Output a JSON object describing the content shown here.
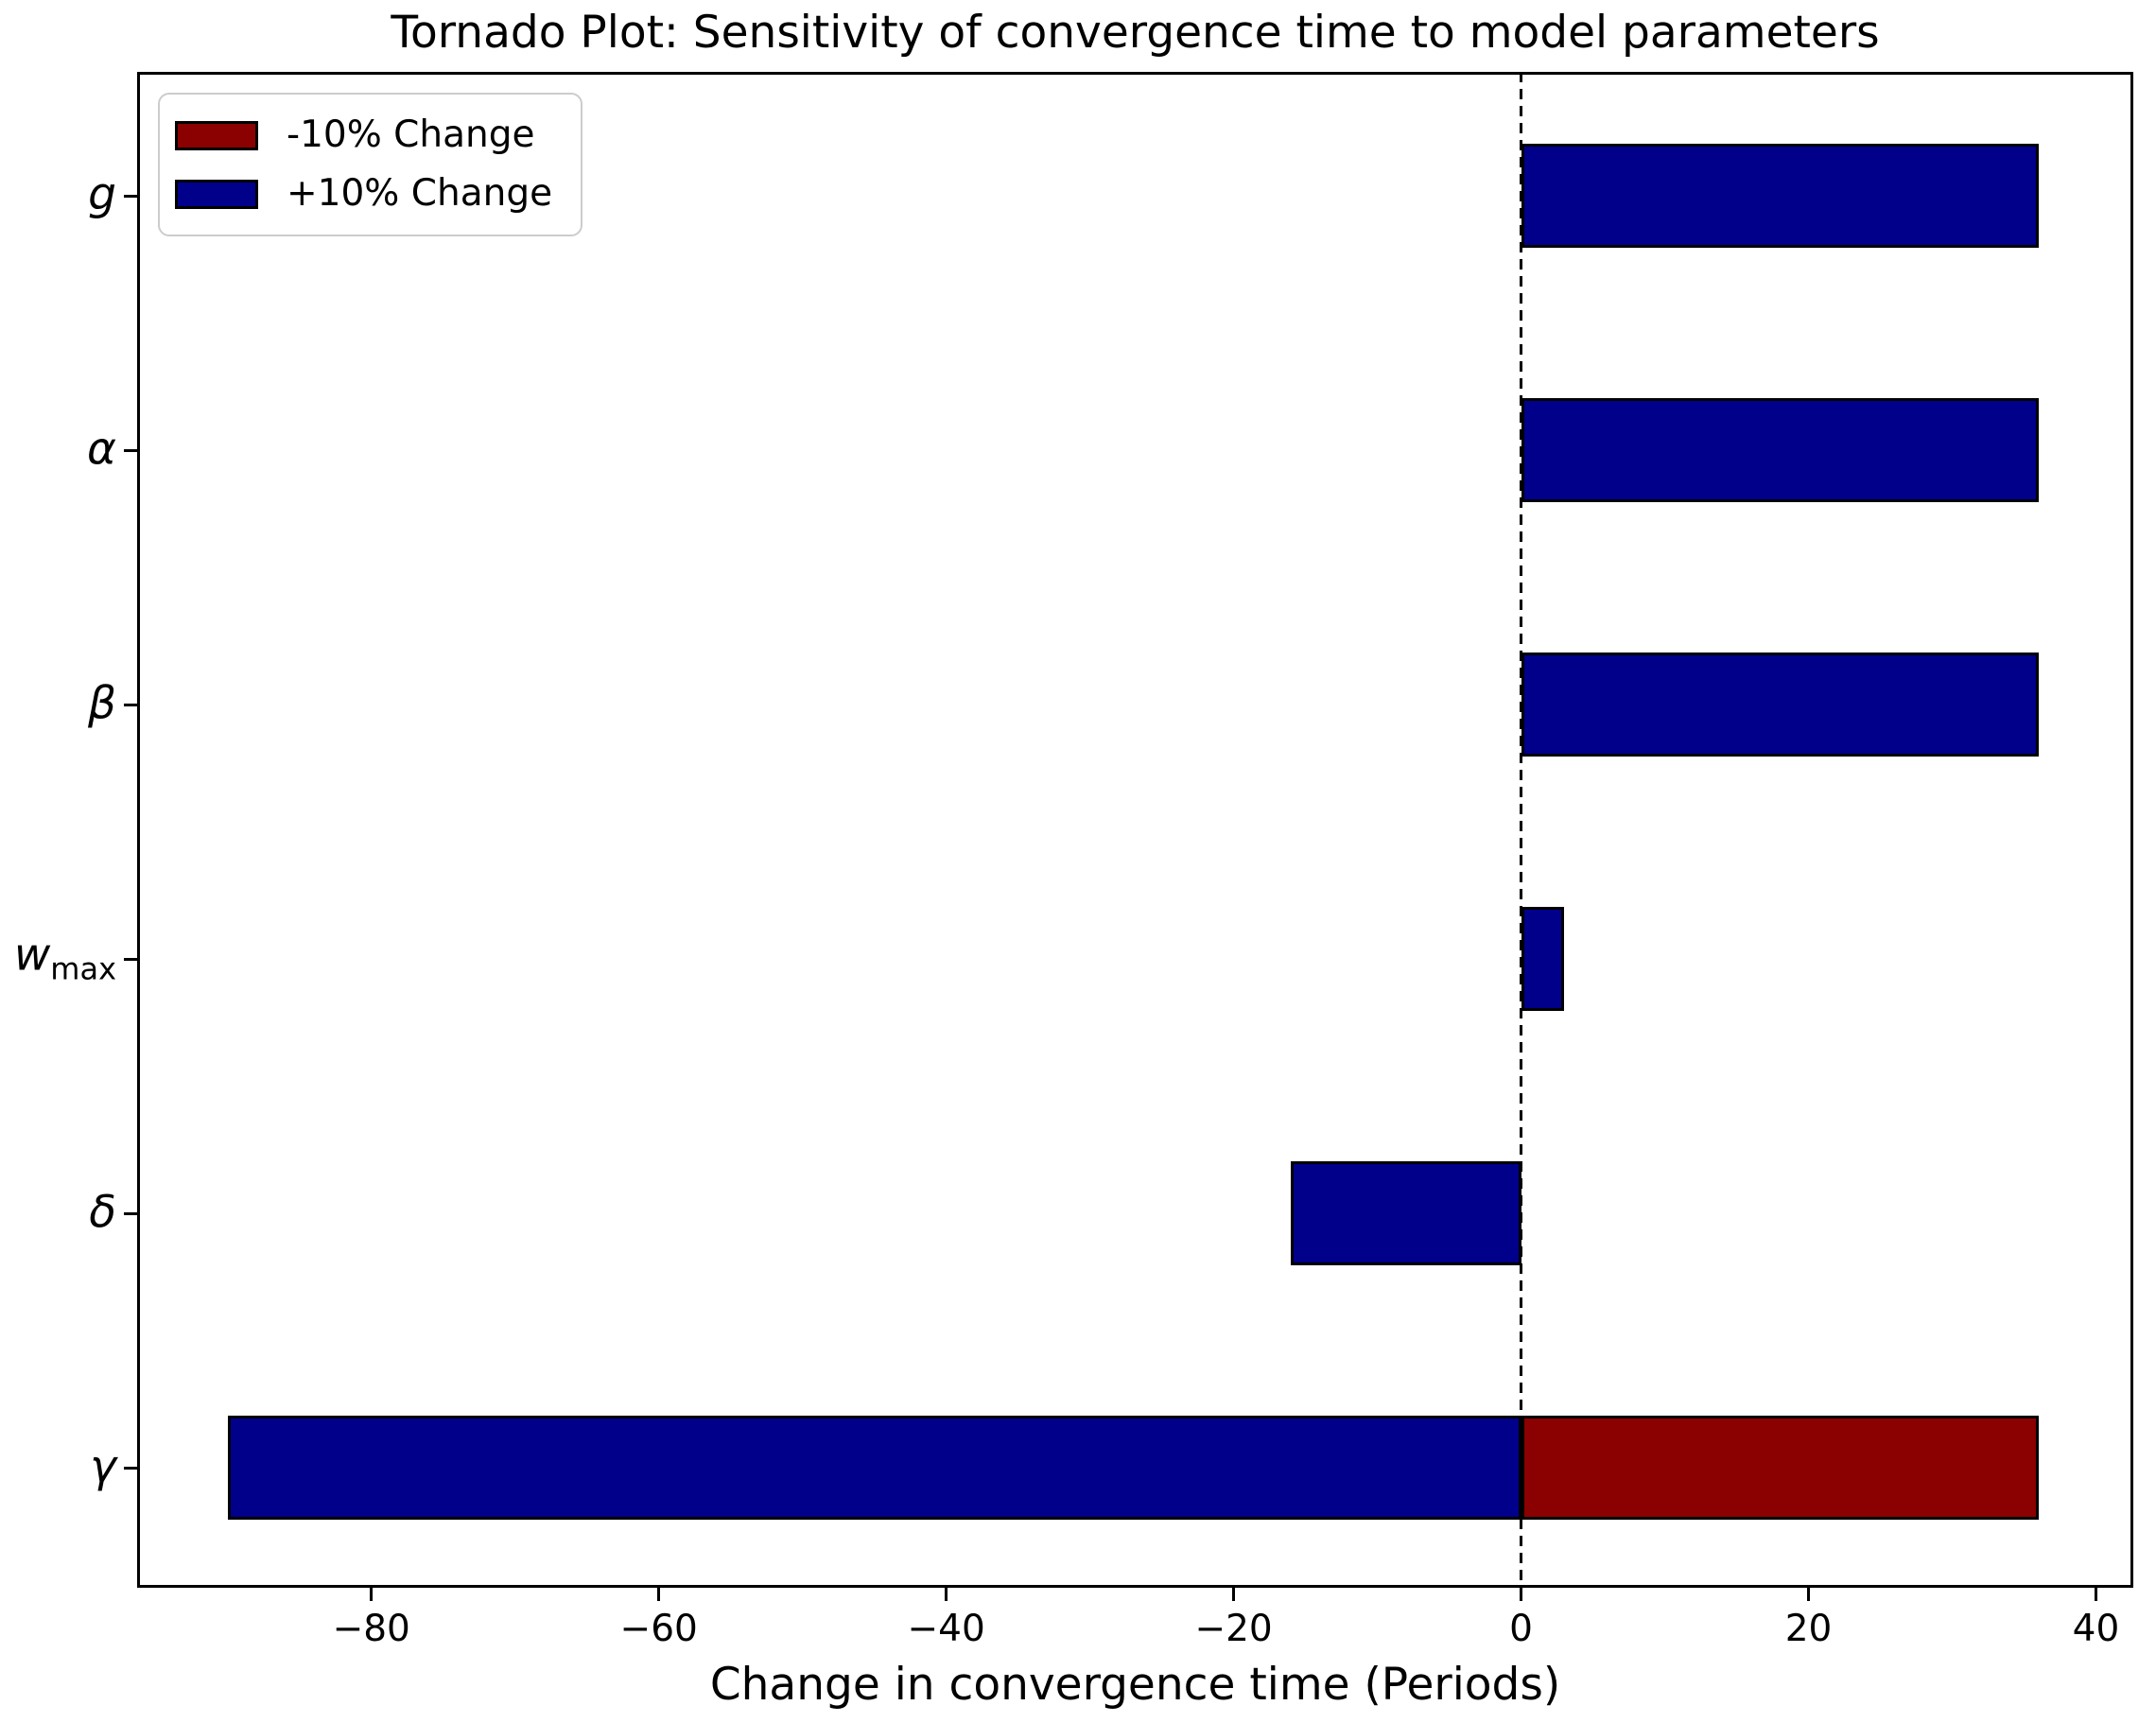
{
  "title": "Tornado Plot: Sensitivity of convergence time to model parameters",
  "xlabel": "Change in convergence time (Periods)",
  "legend": {
    "items": [
      {
        "label": "-10% Change",
        "color": "#8b0000"
      },
      {
        "label": "+10% Change",
        "color": "#00008b"
      }
    ]
  },
  "chart_data": {
    "type": "bar",
    "orientation": "horizontal",
    "title": "Tornado Plot: Sensitivity of convergence time to model parameters",
    "xlabel": "Change in convergence time (Periods)",
    "ylabel": "",
    "categories": [
      {
        "name": "g",
        "label": "g"
      },
      {
        "name": "alpha",
        "label": "α"
      },
      {
        "name": "beta",
        "label": "β"
      },
      {
        "name": "w_max",
        "label": "w",
        "subscript": "max"
      },
      {
        "name": "delta",
        "label": "δ"
      },
      {
        "name": "gamma",
        "label": "γ"
      }
    ],
    "series": [
      {
        "name": "-10% Change",
        "key": "minus10",
        "color": "#8b0000",
        "values": [
          null,
          null,
          null,
          null,
          null,
          36
        ]
      },
      {
        "name": "+10% Change",
        "key": "plus10",
        "color": "#00008b",
        "values": [
          36,
          36,
          36,
          3,
          -16,
          -90
        ]
      }
    ],
    "xlim": [
      -96.3,
      42.6
    ],
    "xticks": [
      -80,
      -60,
      -40,
      -20,
      0,
      20,
      40
    ],
    "grid": {
      "axis": "x",
      "style": "dashed",
      "color": "#bdbdbd"
    },
    "zero_line": {
      "x": 0,
      "style": "dashed",
      "color": "#000000"
    },
    "bar_edge_color": "#000000",
    "legend_position": "upper left"
  }
}
